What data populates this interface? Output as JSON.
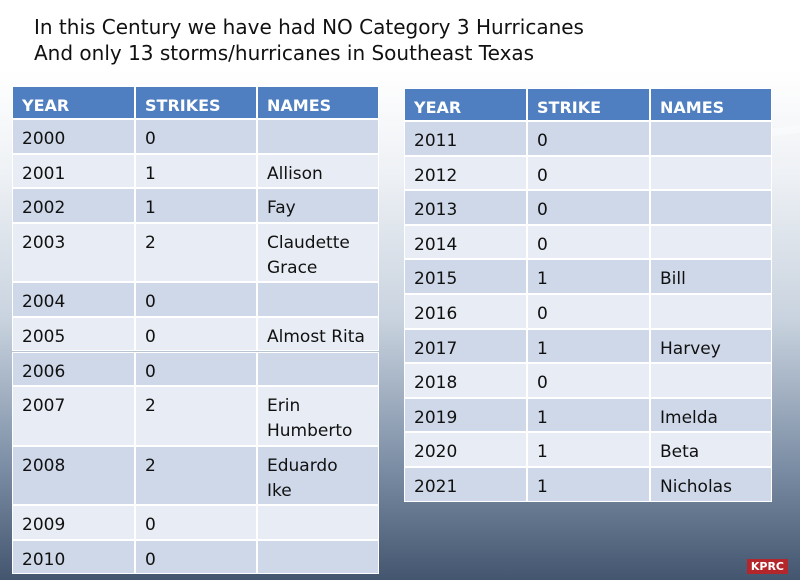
{
  "header": {
    "lines": [
      "In this Century we have had NO Category 3 Hurricanes",
      "And only 13 storms/hurricanes in Southeast Texas"
    ]
  },
  "tables": [
    {
      "columns": [
        "YEAR",
        "STRIKES",
        "NAMES"
      ],
      "rows": [
        [
          2000,
          0,
          []
        ],
        [
          2001,
          1,
          [
            "Allison"
          ]
        ],
        [
          2002,
          1,
          [
            "Fay"
          ]
        ],
        [
          2003,
          2,
          [
            "Claudette",
            "Grace"
          ]
        ],
        [
          2004,
          0,
          []
        ],
        [
          2005,
          0,
          [
            "Almost Rita"
          ]
        ],
        [
          2006,
          0,
          []
        ],
        [
          2007,
          2,
          [
            "Erin",
            "Humberto"
          ]
        ],
        [
          2008,
          2,
          [
            "Eduardo",
            "Ike"
          ]
        ],
        [
          2009,
          0,
          []
        ],
        [
          2010,
          0,
          []
        ]
      ]
    },
    {
      "columns": [
        "YEAR",
        "STRIKE",
        "NAMES"
      ],
      "rows": [
        [
          2011,
          0,
          []
        ],
        [
          2012,
          0,
          []
        ],
        [
          2013,
          0,
          []
        ],
        [
          2014,
          0,
          []
        ],
        [
          2015,
          1,
          [
            "Bill"
          ]
        ],
        [
          2016,
          0,
          []
        ],
        [
          2017,
          1,
          [
            "Harvey"
          ]
        ],
        [
          2018,
          0,
          []
        ],
        [
          2019,
          1,
          [
            "Imelda"
          ]
        ],
        [
          2020,
          1,
          [
            "Beta"
          ]
        ],
        [
          2021,
          1,
          [
            "Nicholas"
          ]
        ]
      ]
    }
  ],
  "logo": "KPRC"
}
